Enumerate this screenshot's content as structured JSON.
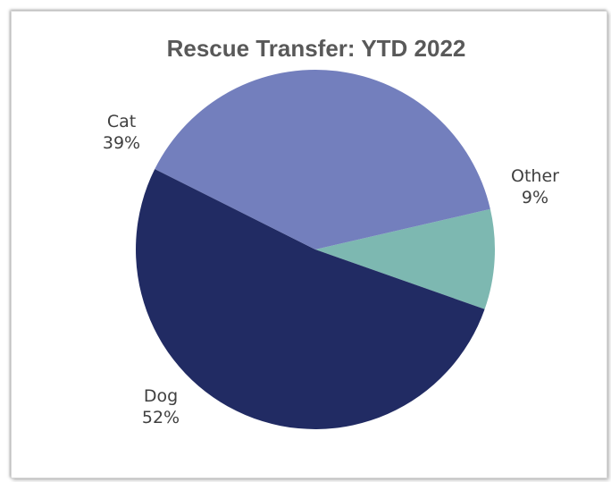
{
  "chart_data": {
    "type": "pie",
    "title": "Rescue Transfer: YTD 2022",
    "categories": [
      "Other",
      "Dog",
      "Cat"
    ],
    "values": [
      9,
      52,
      39
    ],
    "labels": [
      {
        "name": "Other",
        "percent": "9%"
      },
      {
        "name": "Dog",
        "percent": "52%"
      },
      {
        "name": "Cat",
        "percent": "39%"
      }
    ],
    "colors": [
      "#7db8b1",
      "#212b63",
      "#737fbd"
    ],
    "legend": "none",
    "label_position": "outside"
  }
}
